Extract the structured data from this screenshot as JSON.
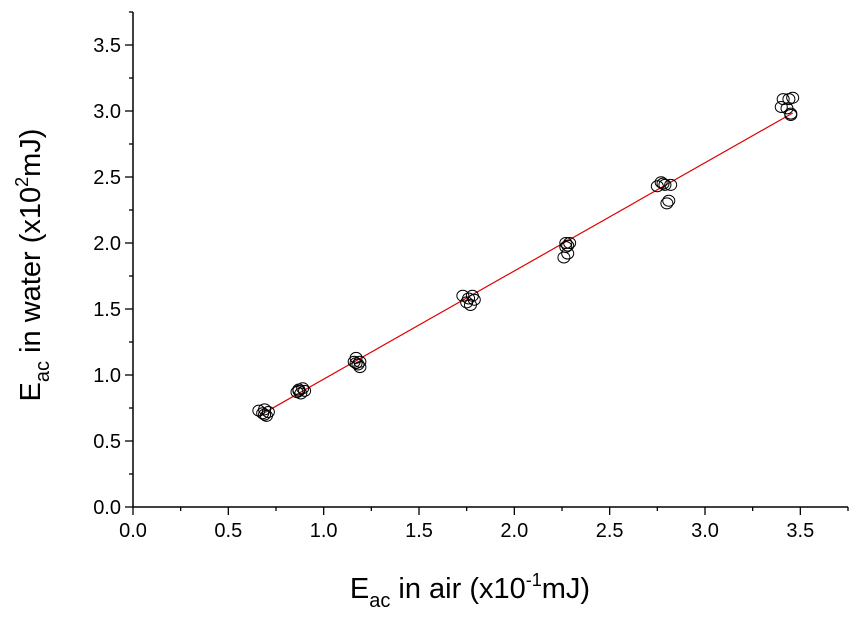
{
  "chart_data": {
    "type": "scatter",
    "xlabel": {
      "base": "E",
      "sub": "ac",
      "pre_sup": " in air (x10",
      "sup": "-1",
      "post_sup": "mJ)"
    },
    "ylabel": {
      "base": "E",
      "sub": "ac",
      "pre_sup": " in water (x10",
      "sup": "2",
      "post_sup": "mJ)"
    },
    "xlim": [
      0,
      3.75
    ],
    "ylim": [
      0,
      3.75
    ],
    "xticks": [
      "0.0",
      "0.5",
      "1.0",
      "1.5",
      "2.0",
      "2.5",
      "3.0",
      "3.5"
    ],
    "yticks": [
      "0.0",
      "0.5",
      "1.0",
      "1.5",
      "2.0",
      "2.5",
      "3.0",
      "3.5"
    ],
    "grid": false,
    "colors": {
      "points": "#000000",
      "fit_line": "#e00000",
      "axes": "#000000"
    },
    "series": [
      {
        "marker": "open-circle",
        "points": [
          [
            0.66,
            0.73
          ],
          [
            0.68,
            0.71
          ],
          [
            0.69,
            0.74
          ],
          [
            0.7,
            0.69
          ],
          [
            0.71,
            0.72
          ],
          [
            0.69,
            0.7
          ],
          [
            0.86,
            0.87
          ],
          [
            0.87,
            0.89
          ],
          [
            0.88,
            0.86
          ],
          [
            0.89,
            0.9
          ],
          [
            0.9,
            0.88
          ],
          [
            0.87,
            0.88
          ],
          [
            1.16,
            1.1
          ],
          [
            1.17,
            1.13
          ],
          [
            1.18,
            1.08
          ],
          [
            1.19,
            1.06
          ],
          [
            1.19,
            1.1
          ],
          [
            1.17,
            1.09
          ],
          [
            1.73,
            1.6
          ],
          [
            1.75,
            1.55
          ],
          [
            1.77,
            1.53
          ],
          [
            1.78,
            1.6
          ],
          [
            1.79,
            1.57
          ],
          [
            1.76,
            1.58
          ],
          [
            2.26,
            1.89
          ],
          [
            2.27,
            1.97
          ],
          [
            2.28,
            1.92
          ],
          [
            2.29,
            2.0
          ],
          [
            2.27,
            2.0
          ],
          [
            2.28,
            1.98
          ],
          [
            2.75,
            2.43
          ],
          [
            2.77,
            2.46
          ],
          [
            2.79,
            2.44
          ],
          [
            2.81,
            2.32
          ],
          [
            2.8,
            2.3
          ],
          [
            2.82,
            2.44
          ],
          [
            2.78,
            2.45
          ],
          [
            3.4,
            3.03
          ],
          [
            3.41,
            3.09
          ],
          [
            3.43,
            3.02
          ],
          [
            3.44,
            3.09
          ],
          [
            3.45,
            2.97
          ],
          [
            3.46,
            3.1
          ],
          [
            3.45,
            2.98
          ]
        ]
      },
      {
        "type": "line",
        "x": [
          0.66,
          3.46
        ],
        "y": [
          0.69,
          2.985
        ]
      }
    ]
  }
}
